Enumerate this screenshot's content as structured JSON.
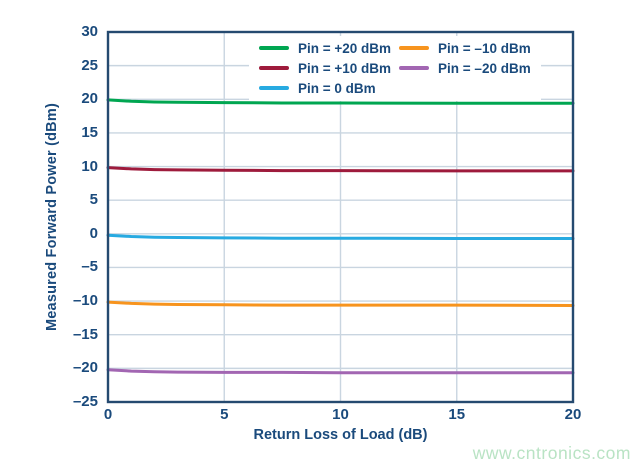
{
  "watermark": {
    "text": "www.cntronics.com",
    "color": "#b9e3c4"
  },
  "colors": {
    "axis_text": "#1a4a7c",
    "frame": "#254a70",
    "grid": "#c9d5e0",
    "background": "#ffffff"
  },
  "chart_data": {
    "type": "line",
    "title": "",
    "xlabel": "Return Loss of Load (dB)",
    "ylabel": "Measured Forward Power (dBm)",
    "xlim": [
      0,
      20
    ],
    "ylim": [
      -25,
      30
    ],
    "grid": true,
    "legend_position": "top-inside",
    "x_ticks": [
      0,
      5,
      10,
      15,
      20
    ],
    "x_tick_labels": [
      "0",
      "5",
      "10",
      "15",
      "20"
    ],
    "y_ticks": [
      30,
      25,
      20,
      15,
      10,
      5,
      0,
      -5,
      -10,
      -15,
      -20,
      -25
    ],
    "y_tick_labels": [
      "30",
      "25",
      "20",
      "15",
      "10",
      "5",
      "0",
      "–5",
      "–10",
      "–15",
      "–20",
      "–25"
    ],
    "x": [
      0,
      1,
      2,
      3,
      5,
      7.5,
      10,
      15,
      20
    ],
    "series": [
      {
        "name": "Pin = +20 dBm",
        "color": "#00a651",
        "values": [
          19.9,
          19.7,
          19.6,
          19.55,
          19.5,
          19.45,
          19.45,
          19.4,
          19.4
        ]
      },
      {
        "name": "Pin = +10 dBm",
        "color": "#9e1b3c",
        "values": [
          9.85,
          9.65,
          9.55,
          9.5,
          9.45,
          9.4,
          9.4,
          9.35,
          9.35
        ]
      },
      {
        "name": "Pin = 0 dBm",
        "color": "#27aae1",
        "values": [
          -0.2,
          -0.4,
          -0.5,
          -0.55,
          -0.6,
          -0.65,
          -0.65,
          -0.7,
          -0.7
        ]
      },
      {
        "name": "Pin = –10 dBm",
        "color": "#f7941e",
        "values": [
          -10.15,
          -10.35,
          -10.45,
          -10.5,
          -10.55,
          -10.6,
          -10.6,
          -10.6,
          -10.65
        ]
      },
      {
        "name": "Pin = –20 dBm",
        "color": "#a266b2",
        "values": [
          -20.2,
          -20.4,
          -20.5,
          -20.55,
          -20.6,
          -20.6,
          -20.65,
          -20.65,
          -20.65
        ]
      }
    ]
  }
}
